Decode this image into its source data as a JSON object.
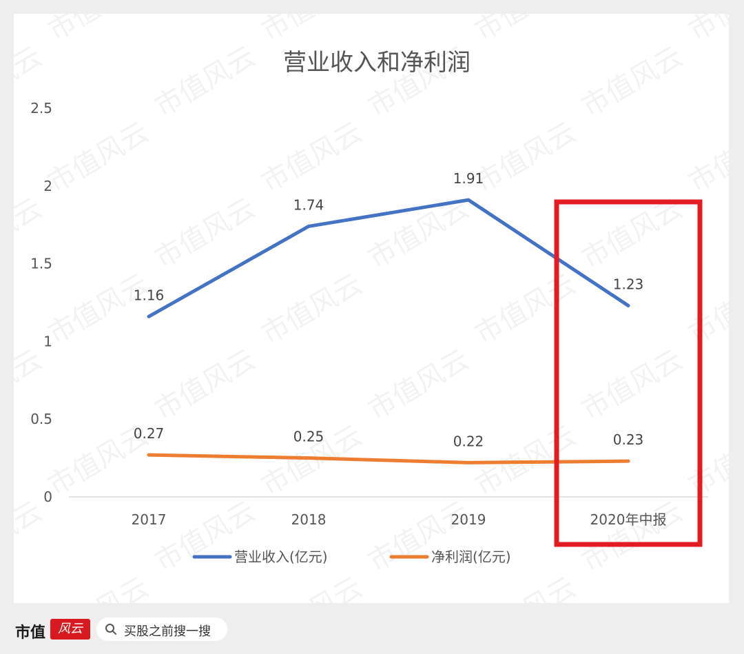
{
  "chart_data": {
    "type": "line",
    "title": "营业收入和净利润",
    "categories": [
      "2017",
      "2018",
      "2019",
      "2020年中报"
    ],
    "ylim": [
      0,
      2.5
    ],
    "yticks": [
      "0",
      "0.5",
      "1",
      "1.5",
      "2",
      "2.5"
    ],
    "grid": false,
    "legend_position": "bottom",
    "series": [
      {
        "name": "营业收入(亿元)",
        "values": [
          1.16,
          1.74,
          1.91,
          1.23
        ],
        "labels": [
          "1.16",
          "1.74",
          "1.91",
          "1.23"
        ],
        "color": "#4472c4"
      },
      {
        "name": "净利润(亿元)",
        "values": [
          0.27,
          0.25,
          0.22,
          0.23
        ],
        "labels": [
          "0.27",
          "0.25",
          "0.22",
          "0.23"
        ],
        "color": "#ed7d31"
      }
    ],
    "highlight": {
      "category": "2020年中报",
      "color": "#e31b23"
    }
  },
  "watermark": "市值风云",
  "footer": {
    "brand": "市值",
    "badge": "风云",
    "search_text": "买股之前搜一搜",
    "search_icon": "search-icon"
  }
}
